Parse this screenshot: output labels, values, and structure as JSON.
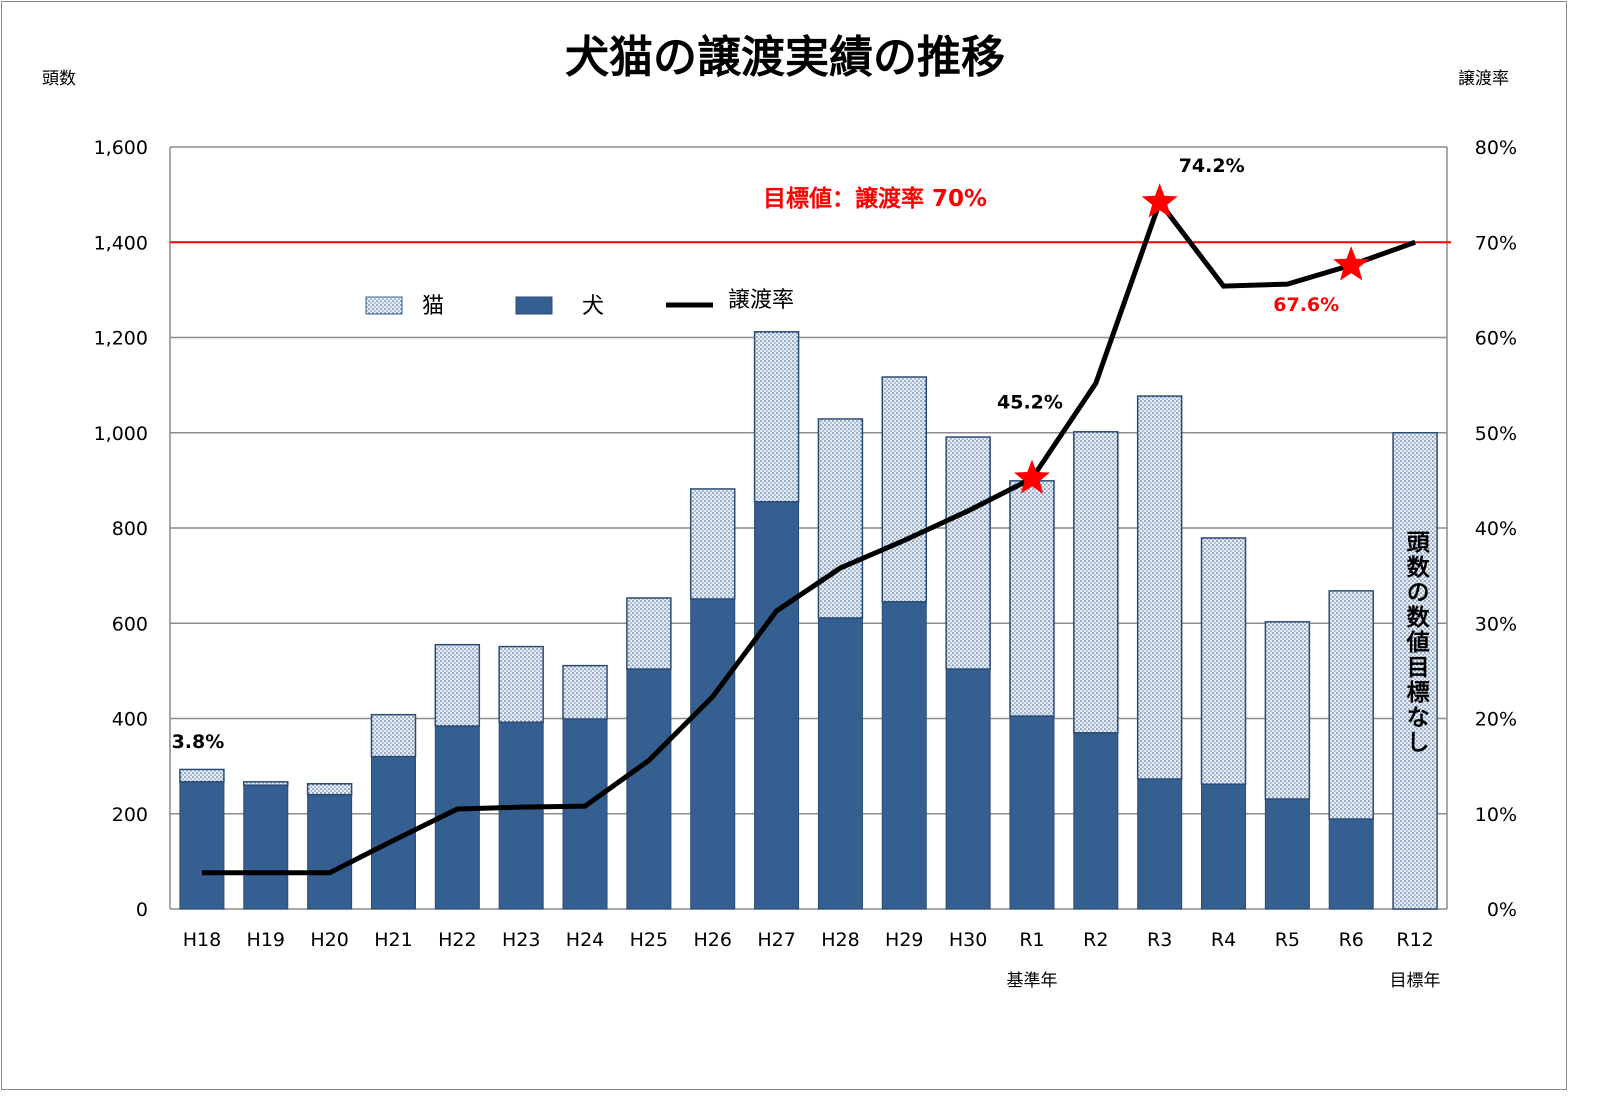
{
  "chart_data": {
    "type": "bar+line",
    "title": "犬猫の譲渡実績の推移",
    "ylabel_left": "頭数",
    "ylabel_right": "譲渡率",
    "ylim_left": [
      0,
      1600
    ],
    "ylim_right": [
      0,
      80
    ],
    "left_ticks": [
      "0",
      "200",
      "400",
      "600",
      "800",
      "1,000",
      "1,200",
      "1,400",
      "1,600"
    ],
    "right_ticks": [
      "0%",
      "10%",
      "20%",
      "30%",
      "40%",
      "50%",
      "60%",
      "70%",
      "80%"
    ],
    "categories": [
      "H18",
      "H19",
      "H20",
      "H21",
      "H22",
      "H23",
      "H24",
      "H25",
      "H26",
      "H27",
      "H28",
      "H29",
      "H30",
      "R1",
      "R2",
      "R3",
      "R4",
      "R5",
      "R6",
      "R12"
    ],
    "category_notes": {
      "R1": "基準年",
      "R12": "目標年"
    },
    "series": [
      {
        "name": "猫",
        "type": "stacked-bar",
        "values": [
          26,
          7,
          23,
          88,
          171,
          159,
          112,
          149,
          231,
          357,
          418,
          472,
          487,
          494,
          632,
          804,
          517,
          372,
          479,
          1000
        ]
      },
      {
        "name": "犬",
        "type": "stacked-bar",
        "values": [
          267,
          260,
          240,
          320,
          384,
          392,
          399,
          504,
          651,
          855,
          611,
          645,
          504,
          405,
          370,
          273,
          262,
          231,
          189,
          0
        ]
      },
      {
        "name": "譲渡率",
        "type": "line",
        "axis": "right",
        "values": [
          3.8,
          3.8,
          3.8,
          7.2,
          10.5,
          10.7,
          10.8,
          15.6,
          22.3,
          31.3,
          35.8,
          38.7,
          41.8,
          45.2,
          55.2,
          74.2,
          65.4,
          65.6,
          67.6,
          70.0
        ]
      }
    ],
    "highlight_points": [
      "R1",
      "R3",
      "R6"
    ],
    "data_labels": [
      {
        "category": "H18",
        "text": "3.8%",
        "color": "#000000"
      },
      {
        "category": "R1",
        "text": "45.2%",
        "color": "#000000"
      },
      {
        "category": "R3",
        "text": "74.2%",
        "color": "#000000"
      },
      {
        "category": "R6",
        "text": "67.6%",
        "color": "#ff0000"
      }
    ],
    "target_line": {
      "value": 70,
      "label": "目標値：譲渡率 70%",
      "color": "#ff0000"
    },
    "r12_note": "頭数の数値目標なし",
    "legend_position": "top-center",
    "grid": true,
    "colors": {
      "dog": "#355f91",
      "cat_bg": "#e8eef7",
      "line": "#000000",
      "target": "#ff0000",
      "grid": "#8c8c8c"
    }
  }
}
